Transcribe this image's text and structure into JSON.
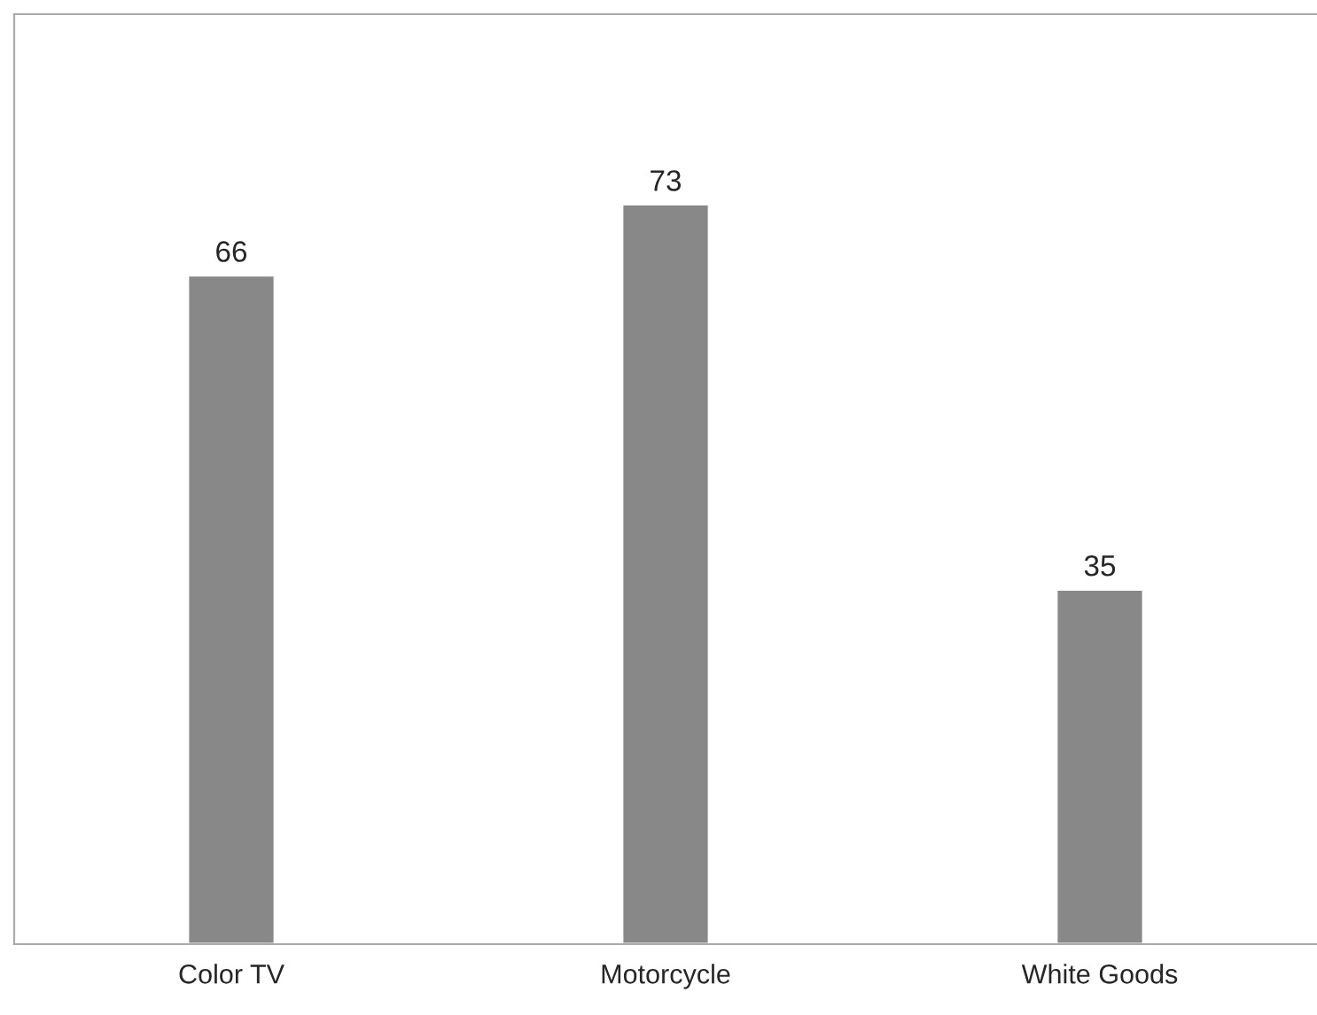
{
  "chart_data": {
    "type": "bar",
    "categories": [
      "Color TV",
      "Motorcycle",
      "White Goods"
    ],
    "values": [
      66,
      73,
      35
    ],
    "color": "#888888",
    "data_labels": true,
    "grid": false,
    "legend": false
  }
}
